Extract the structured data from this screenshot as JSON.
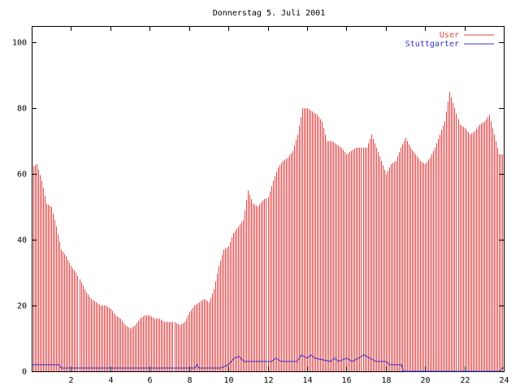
{
  "chart_data": {
    "type": "bar",
    "title": "Donnerstag 5. Juli 2001",
    "xlabel": "",
    "ylabel": "",
    "xlim": [
      0,
      24
    ],
    "ylim": [
      0,
      105
    ],
    "x_ticks": [
      2,
      4,
      6,
      8,
      10,
      12,
      14,
      16,
      18,
      20,
      22,
      24
    ],
    "y_ticks": [
      0,
      20,
      40,
      60,
      80,
      100
    ],
    "grid": false,
    "legend_position": "top-right",
    "colors": {
      "User": "#dd4444",
      "Stuttgarter": "#3333cc"
    },
    "series": [
      {
        "name": "User",
        "style": "impulses",
        "points": [
          [
            0.0,
            62
          ],
          [
            0.25,
            63
          ],
          [
            0.5,
            58
          ],
          [
            0.75,
            51
          ],
          [
            1.0,
            50
          ],
          [
            1.25,
            44
          ],
          [
            1.5,
            37
          ],
          [
            1.75,
            35
          ],
          [
            2.0,
            32
          ],
          [
            2.25,
            30
          ],
          [
            2.5,
            27
          ],
          [
            2.75,
            24
          ],
          [
            3.0,
            22
          ],
          [
            3.25,
            21
          ],
          [
            3.5,
            20
          ],
          [
            3.75,
            20
          ],
          [
            4.0,
            19
          ],
          [
            4.25,
            17
          ],
          [
            4.5,
            16
          ],
          [
            4.75,
            14
          ],
          [
            5.0,
            13
          ],
          [
            5.25,
            14
          ],
          [
            5.5,
            16
          ],
          [
            5.75,
            17
          ],
          [
            6.0,
            17
          ],
          [
            6.25,
            16
          ],
          [
            6.5,
            16
          ],
          [
            6.75,
            15
          ],
          [
            7.0,
            15
          ],
          [
            7.25,
            15
          ],
          [
            7.5,
            14
          ],
          [
            7.75,
            15
          ],
          [
            8.0,
            18
          ],
          [
            8.25,
            20
          ],
          [
            8.5,
            21
          ],
          [
            8.75,
            22
          ],
          [
            9.0,
            21
          ],
          [
            9.25,
            25
          ],
          [
            9.5,
            32
          ],
          [
            9.75,
            37
          ],
          [
            10.0,
            38
          ],
          [
            10.25,
            42
          ],
          [
            10.5,
            44
          ],
          [
            10.75,
            46
          ],
          [
            11.0,
            55
          ],
          [
            11.25,
            51
          ],
          [
            11.5,
            50
          ],
          [
            11.75,
            52
          ],
          [
            12.0,
            53
          ],
          [
            12.25,
            58
          ],
          [
            12.5,
            62
          ],
          [
            12.75,
            64
          ],
          [
            13.0,
            65
          ],
          [
            13.25,
            67
          ],
          [
            13.5,
            72
          ],
          [
            13.75,
            80
          ],
          [
            14.0,
            80
          ],
          [
            14.25,
            79
          ],
          [
            14.5,
            78
          ],
          [
            14.75,
            76
          ],
          [
            15.0,
            70
          ],
          [
            15.25,
            70
          ],
          [
            15.5,
            69
          ],
          [
            15.75,
            68
          ],
          [
            16.0,
            66
          ],
          [
            16.25,
            67
          ],
          [
            16.5,
            68
          ],
          [
            16.75,
            68
          ],
          [
            17.0,
            68
          ],
          [
            17.25,
            72
          ],
          [
            17.5,
            68
          ],
          [
            17.75,
            64
          ],
          [
            18.0,
            60
          ],
          [
            18.25,
            63
          ],
          [
            18.5,
            64
          ],
          [
            18.75,
            68
          ],
          [
            19.0,
            71
          ],
          [
            19.25,
            68
          ],
          [
            19.5,
            66
          ],
          [
            19.75,
            64
          ],
          [
            20.0,
            63
          ],
          [
            20.25,
            65
          ],
          [
            20.5,
            68
          ],
          [
            20.75,
            72
          ],
          [
            21.0,
            76
          ],
          [
            21.25,
            85
          ],
          [
            21.5,
            80
          ],
          [
            21.75,
            75
          ],
          [
            22.0,
            74
          ],
          [
            22.25,
            72
          ],
          [
            22.5,
            73
          ],
          [
            22.75,
            75
          ],
          [
            23.0,
            76
          ],
          [
            23.25,
            78
          ],
          [
            23.5,
            72
          ],
          [
            23.75,
            66
          ]
        ]
      },
      {
        "name": "Stuttgarter",
        "style": "line",
        "points": [
          [
            0.0,
            2
          ],
          [
            1.4,
            2
          ],
          [
            1.5,
            1
          ],
          [
            8.3,
            1
          ],
          [
            8.4,
            2
          ],
          [
            8.5,
            1
          ],
          [
            9.6,
            1
          ],
          [
            10.0,
            2
          ],
          [
            10.3,
            4
          ],
          [
            10.55,
            4.5
          ],
          [
            10.8,
            3
          ],
          [
            12.2,
            3
          ],
          [
            12.4,
            4
          ],
          [
            12.7,
            3
          ],
          [
            13.5,
            3
          ],
          [
            13.7,
            5
          ],
          [
            14.0,
            4
          ],
          [
            14.2,
            5
          ],
          [
            14.4,
            4
          ],
          [
            15.2,
            3
          ],
          [
            15.4,
            4
          ],
          [
            15.6,
            3
          ],
          [
            16.0,
            4
          ],
          [
            16.3,
            3
          ],
          [
            16.6,
            4
          ],
          [
            16.9,
            5
          ],
          [
            17.2,
            4
          ],
          [
            17.5,
            3
          ],
          [
            18.0,
            3
          ],
          [
            18.2,
            2
          ],
          [
            18.8,
            2
          ],
          [
            18.9,
            0
          ],
          [
            23.8,
            0
          ],
          [
            23.9,
            1
          ],
          [
            24.0,
            1
          ]
        ]
      }
    ]
  }
}
